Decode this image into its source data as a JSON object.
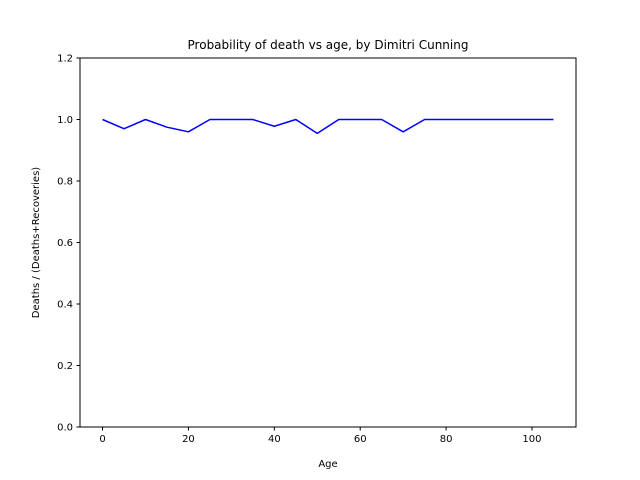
{
  "chart_data": {
    "type": "line",
    "title": "Probability of death vs age, by Dimitri Cunning",
    "xlabel": "Age",
    "ylabel": "Deaths / (Deaths+Recoveries)",
    "xlim": [
      -5.25,
      110.25
    ],
    "ylim": [
      0.0,
      1.2
    ],
    "xticks": [
      0,
      20,
      40,
      60,
      80,
      100
    ],
    "xtick_labels": [
      "0",
      "20",
      "40",
      "60",
      "80",
      "100"
    ],
    "yticks": [
      0.0,
      0.2,
      0.4,
      0.6,
      0.8,
      1.0,
      1.2
    ],
    "ytick_labels": [
      "0.0",
      "0.2",
      "0.4",
      "0.6",
      "0.8",
      "1.0",
      "1.2"
    ],
    "grid": false,
    "legend": false,
    "series": [
      {
        "color": "#0000ff",
        "x": [
          0,
          5,
          10,
          15,
          20,
          25,
          30,
          35,
          40,
          45,
          50,
          55,
          60,
          65,
          70,
          75,
          80,
          85,
          90,
          95,
          100,
          105
        ],
        "y": [
          1.0,
          0.97,
          1.0,
          0.975,
          0.96,
          1.0,
          1.0,
          1.0,
          0.978,
          1.0,
          0.955,
          1.0,
          1.0,
          1.0,
          0.96,
          1.0,
          1.0,
          1.0,
          1.0,
          1.0,
          1.0,
          1.0
        ]
      }
    ]
  }
}
